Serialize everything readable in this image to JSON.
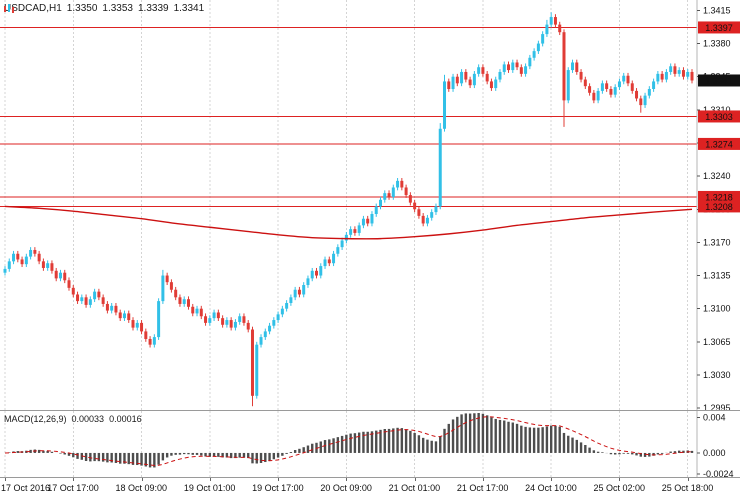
{
  "header": {
    "symbol_period": "USDCAD,H1",
    "open": "1.3350",
    "high": "1.3353",
    "low": "1.3339",
    "close": "1.3341"
  },
  "macd_panel": {
    "label": "MACD(12,26,9)",
    "value_main": "0.00033",
    "value_signal": "0.00016"
  },
  "colors": {
    "up": "#31c0e7",
    "down": "#e03c36",
    "level_line": "#dd2222",
    "level_badge": "#dd2222",
    "bid_badge": "#111111",
    "ma_line": "#cc1111",
    "grid": "#d4d4d4",
    "axis_line": "#b4b4b4",
    "hist": "#4d4d4d",
    "signal": "#cc1111",
    "badge_text": "#ffffff",
    "background": "#ffffff"
  },
  "chart_data": {
    "type": "candlestick",
    "symbol": "USDCAD",
    "timeframe": "H1",
    "title": "USDCAD,H1",
    "price_range": [
      1.2993,
      1.3426
    ],
    "price_axis_ticks": [
      "1.3415",
      "1.3380",
      "1.3345",
      "1.3310",
      "1.3275",
      "1.3240",
      "1.3205",
      "1.3170",
      "1.3135",
      "1.3100",
      "1.3065",
      "1.3030",
      "1.2995"
    ],
    "badges": [
      {
        "text": "1.3397",
        "style": "level"
      },
      {
        "text": "1.3341",
        "style": "bid"
      },
      {
        "text": "1.3303",
        "style": "level"
      },
      {
        "text": "1.3274",
        "style": "level"
      },
      {
        "text": "1.3218",
        "style": "level"
      },
      {
        "text": "1.3208",
        "style": "level"
      }
    ],
    "levels": [
      1.3397,
      1.3303,
      1.3274,
      1.3218,
      1.3208
    ],
    "bid_price": 1.3341,
    "time_labels": [
      {
        "bar": 0,
        "text": "17 Oct 2016"
      },
      {
        "bar": 16,
        "text": "17 Oct 17:00"
      },
      {
        "bar": 32,
        "text": "18 Oct 09:00"
      },
      {
        "bar": 48,
        "text": "19 Oct 01:00"
      },
      {
        "bar": 64,
        "text": "19 Oct 17:00"
      },
      {
        "bar": 80,
        "text": "20 Oct 09:00"
      },
      {
        "bar": 96,
        "text": "21 Oct 01:00"
      },
      {
        "bar": 112,
        "text": "21 Oct 17:00"
      },
      {
        "bar": 128,
        "text": "24 Oct 10:00"
      },
      {
        "bar": 144,
        "text": "25 Oct 02:00"
      },
      {
        "bar": 160,
        "text": "25 Oct 18:00"
      }
    ],
    "bars_per_gridline": 16,
    "first_open": 1.3138,
    "wick": 0.0003,
    "closes": [
      1.3142,
      1.315,
      1.3158,
      1.3152,
      1.3147,
      1.3155,
      1.3162,
      1.3158,
      1.315,
      1.3143,
      1.3148,
      1.314,
      1.3132,
      1.3138,
      1.313,
      1.3122,
      1.3115,
      1.3108,
      1.3112,
      1.3104,
      1.311,
      1.3118,
      1.3112,
      1.3105,
      1.3098,
      1.3103,
      1.3096,
      1.309,
      1.3095,
      1.3088,
      1.308,
      1.3085,
      1.3076,
      1.3068,
      1.3062,
      1.307,
      1.3108,
      1.3135,
      1.3128,
      1.312,
      1.3112,
      1.3105,
      1.311,
      1.3102,
      1.3095,
      1.31,
      1.3092,
      1.3085,
      1.309,
      1.3096,
      1.309,
      1.3083,
      1.3088,
      1.308,
      1.3086,
      1.3092,
      1.3085,
      1.3078,
      1.3008,
      1.3062,
      1.307,
      1.3076,
      1.3082,
      1.3088,
      1.3094,
      1.31,
      1.3106,
      1.3112,
      1.312,
      1.3115,
      1.3125,
      1.3132,
      1.314,
      1.3135,
      1.3145,
      1.3152,
      1.3148,
      1.3158,
      1.3165,
      1.3172,
      1.3178,
      1.3184,
      1.318,
      1.3188,
      1.3195,
      1.319,
      1.32,
      1.3208,
      1.3215,
      1.3222,
      1.3218,
      1.3228,
      1.3235,
      1.3228,
      1.322,
      1.3212,
      1.3205,
      1.3198,
      1.319,
      1.3196,
      1.3202,
      1.3208,
      1.329,
      1.334,
      1.3332,
      1.3345,
      1.3338,
      1.335,
      1.3342,
      1.3336,
      1.3348,
      1.3355,
      1.3348,
      1.334,
      1.3333,
      1.3342,
      1.335,
      1.3358,
      1.3352,
      1.336,
      1.3355,
      1.3348,
      1.3356,
      1.3365,
      1.3372,
      1.338,
      1.339,
      1.34,
      1.3408,
      1.34,
      1.3392,
      1.332,
      1.3352,
      1.336,
      1.335,
      1.3342,
      1.3335,
      1.3328,
      1.332,
      1.333,
      1.3338,
      1.3332,
      1.3326,
      1.3334,
      1.334,
      1.3346,
      1.3338,
      1.333,
      1.3322,
      1.3315,
      1.3325,
      1.3332,
      1.334,
      1.3348,
      1.3342,
      1.335,
      1.3356,
      1.3348,
      1.3352,
      1.3345,
      1.335,
      1.3341
    ],
    "overrides": {
      "37": {
        "high": 1.3141
      },
      "58": {
        "low": 1.2997
      },
      "102": {
        "high": 1.3296
      },
      "103": {
        "high": 1.3347
      },
      "127": {
        "high": 1.3405
      },
      "128": {
        "high": 1.3413
      },
      "131": {
        "low": 1.3292
      },
      "149": {
        "low": 1.3307
      }
    },
    "ma_points": [
      [
        0,
        1.3208
      ],
      [
        8,
        1.3206
      ],
      [
        16,
        1.3203
      ],
      [
        24,
        1.3199
      ],
      [
        32,
        1.3195
      ],
      [
        40,
        1.319
      ],
      [
        48,
        1.3186
      ],
      [
        56,
        1.3182
      ],
      [
        64,
        1.3178
      ],
      [
        72,
        1.3175
      ],
      [
        80,
        1.3174
      ],
      [
        88,
        1.3174
      ],
      [
        96,
        1.3176
      ],
      [
        104,
        1.3179
      ],
      [
        112,
        1.3183
      ],
      [
        120,
        1.3188
      ],
      [
        128,
        1.3192
      ],
      [
        136,
        1.3196
      ],
      [
        144,
        1.3199
      ],
      [
        152,
        1.3202
      ],
      [
        161,
        1.3205
      ]
    ],
    "macd": {
      "fast": 12,
      "slow": 26,
      "signal": 9,
      "axis_ticks": [
        "0.004",
        "0.000",
        "-0.0024"
      ]
    }
  }
}
